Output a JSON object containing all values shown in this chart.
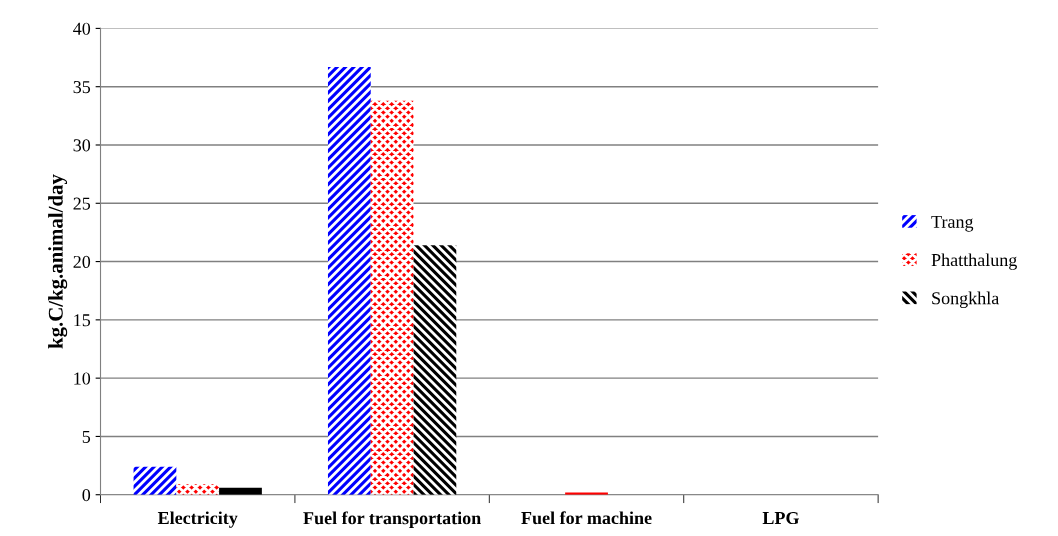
{
  "chart_data": {
    "type": "bar",
    "ylabel": "kg.C/kg.animal/day",
    "categories": [
      "Electricity",
      "Fuel for transportation",
      "Fuel for machine",
      "LPG"
    ],
    "series": [
      {
        "name": "Trang",
        "color": "#0000ff",
        "values": [
          2.4,
          36.7,
          0,
          0
        ]
      },
      {
        "name": "Phatthalung",
        "color": "#ff0000",
        "values": [
          0.9,
          33.8,
          0.2,
          0
        ]
      },
      {
        "name": "Songkhla",
        "color": "#000000",
        "values": [
          0.6,
          21.4,
          0,
          0
        ]
      }
    ],
    "ylim": [
      0,
      40
    ],
    "yticks": [
      0,
      5,
      10,
      15,
      20,
      25,
      30,
      35,
      40
    ],
    "grid": "y",
    "legend": "right"
  }
}
